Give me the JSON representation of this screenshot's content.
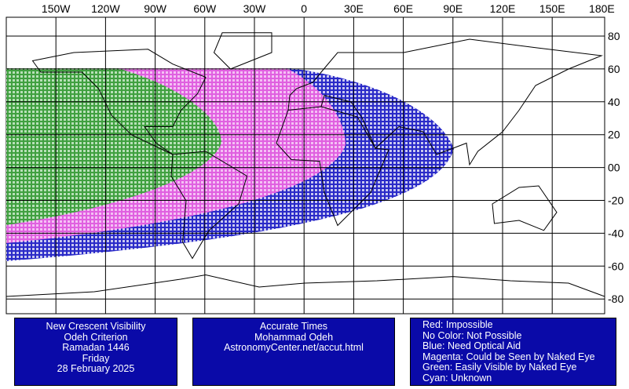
{
  "map": {
    "longitude_labels": [
      "150W",
      "120W",
      "90W",
      "60W",
      "30W",
      "0",
      "30E",
      "60E",
      "90E",
      "120E",
      "150E",
      "180E"
    ],
    "latitude_labels": [
      "80",
      "60",
      "40",
      "20",
      "00",
      "-20",
      "-40",
      "-60",
      "-80"
    ]
  },
  "boxes": {
    "left": [
      "New Crescent Visibility",
      "Odeh Criterion",
      "Ramadan 1446",
      "Friday",
      "28 February 2025"
    ],
    "middle": [
      "Accurate Times",
      "Mohammad Odeh",
      "AstronomyCenter.net/accut.html"
    ],
    "legend": [
      "Red: Impossible",
      "No Color: Not Possible",
      "Blue: Need Optical Aid",
      "Magenta: Could be Seen by Naked Eye",
      "Green: Easily Visible by Naked Eye",
      "Cyan: Unknown"
    ]
  }
}
